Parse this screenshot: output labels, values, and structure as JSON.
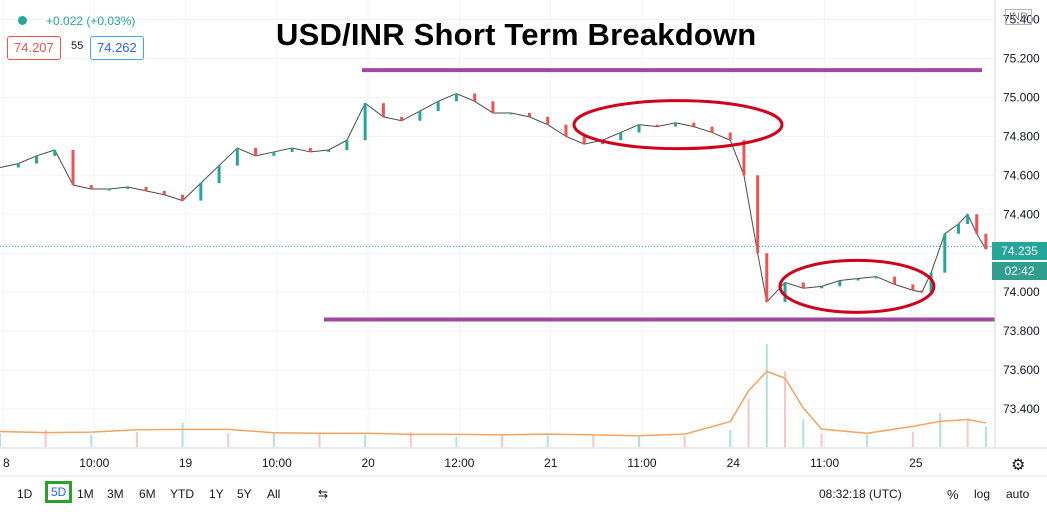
{
  "header": {
    "change": "+0.022 (+0.03%)",
    "bid": "74.207",
    "spread": "55",
    "ask": "74.262",
    "currency": "INR"
  },
  "title": "USD/INR Short Term Breakdown",
  "price_tag": {
    "price": "74.235",
    "countdown": "02:42"
  },
  "toolbar": {
    "ranges": [
      "1D",
      "5D",
      "1M",
      "3M",
      "6M",
      "YTD",
      "1Y",
      "5Y",
      "All"
    ],
    "active": "5D",
    "clock": "08:32:18 (UTC)",
    "percent": "%",
    "log": "log",
    "auto": "auto"
  },
  "colors": {
    "up": "#26a69a",
    "down": "#ef5350",
    "annotation_line": "#9c4a9e",
    "ellipse": "#d0021b",
    "volume_ma": "#f4a460"
  },
  "chart_data": {
    "type": "line",
    "title": "USD/INR Short Term Breakdown",
    "yaxis_ticks": [
      "75.400",
      "75.200",
      "75.000",
      "74.800",
      "74.600",
      "74.400",
      "74.200",
      "74.000",
      "73.800",
      "73.600",
      "73.400"
    ],
    "ylim": [
      73.2,
      75.5
    ],
    "xaxis_ticks": [
      "8",
      "10:00",
      "19",
      "10:00",
      "20",
      "12:00",
      "21",
      "11:00",
      "24",
      "11:00",
      "25"
    ],
    "x_positions": [
      0,
      1,
      2,
      3,
      4,
      5,
      6,
      7,
      8,
      9,
      10
    ],
    "xlim": [
      0,
      10.9
    ],
    "series": [
      {
        "x": [
          0,
          0.2,
          0.4,
          0.6,
          0.8,
          1.0,
          1.2,
          1.4,
          1.6,
          1.8,
          2.0,
          2.2,
          2.4,
          2.6,
          2.8,
          3.0,
          3.2,
          3.4,
          3.6,
          3.8,
          4.0,
          4.2,
          4.4,
          4.6,
          4.8,
          5.0,
          5.2,
          5.4,
          5.6,
          5.8,
          6.0,
          6.2,
          6.4,
          6.6,
          6.8,
          7.0,
          7.2,
          7.4,
          7.6,
          7.8,
          8.0,
          8.15,
          8.3,
          8.4,
          8.6,
          8.8,
          9.0,
          9.2,
          9.4,
          9.6,
          9.8,
          10.0,
          10.1,
          10.2,
          10.35,
          10.5,
          10.6,
          10.7,
          10.8
        ],
        "values": [
          74.64,
          74.66,
          74.7,
          74.73,
          74.55,
          74.53,
          74.53,
          74.54,
          74.52,
          74.5,
          74.47,
          74.56,
          74.65,
          74.74,
          74.7,
          74.72,
          74.74,
          74.72,
          74.73,
          74.78,
          74.97,
          74.9,
          74.88,
          74.93,
          74.98,
          75.02,
          74.98,
          74.92,
          74.92,
          74.9,
          74.86,
          74.8,
          74.76,
          74.78,
          74.82,
          74.86,
          74.85,
          74.87,
          74.85,
          74.82,
          74.78,
          74.6,
          74.2,
          73.95,
          74.05,
          74.02,
          74.03,
          74.06,
          74.07,
          74.08,
          74.04,
          74.01,
          74.0,
          74.1,
          74.3,
          74.35,
          74.4,
          74.3,
          74.22
        ]
      }
    ],
    "volume": {
      "x": [
        0,
        0.5,
        1,
        1.5,
        2,
        2.5,
        3,
        3.5,
        4,
        4.5,
        5,
        5.5,
        6,
        6.5,
        7,
        7.5,
        8,
        8.2,
        8.4,
        8.6,
        8.8,
        9,
        9.5,
        10,
        10.3,
        10.6,
        10.8
      ],
      "values": [
        20,
        25,
        18,
        22,
        35,
        20,
        22,
        20,
        18,
        22,
        15,
        18,
        20,
        18,
        15,
        16,
        25,
        70,
        150,
        110,
        40,
        20,
        18,
        22,
        50,
        40,
        30
      ]
    }
  }
}
